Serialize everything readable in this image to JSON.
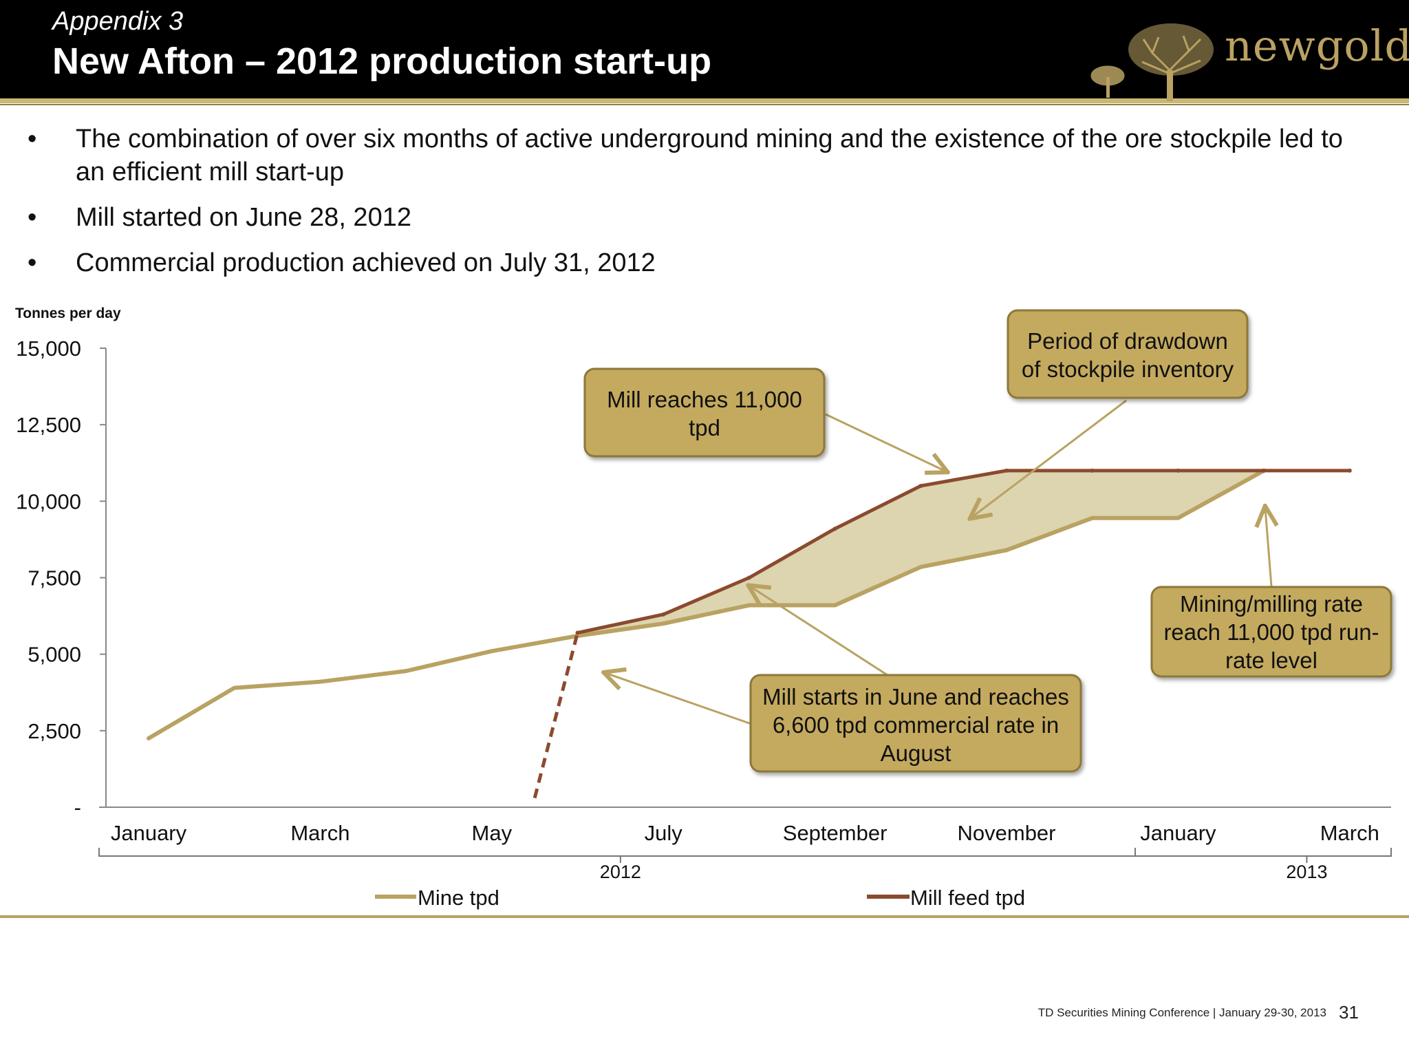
{
  "header": {
    "appendix": "Appendix 3",
    "title": "New Afton – 2012 production start-up",
    "logo_text": "newgold"
  },
  "bullets": [
    "The combination of over six months of active underground mining and the existence of the ore stockpile led to an efficient mill start-up",
    "Mill started on June 28, 2012",
    "Commercial production achieved on July 31, 2012"
  ],
  "chart_data": {
    "type": "line",
    "ylabel": "Tonnes per day",
    "ylim": [
      0,
      15000
    ],
    "ytick_labels": [
      "-",
      "2,500",
      "5,000",
      "7,500",
      "10,000",
      "12,500",
      "15,000"
    ],
    "ytick_values": [
      0,
      2500,
      5000,
      7500,
      10000,
      12500,
      15000
    ],
    "categories": [
      "Jan 2012",
      "Feb 2012",
      "Mar 2012",
      "Apr 2012",
      "May 2012",
      "Jun 2012",
      "Jul 2012",
      "Aug 2012",
      "Sep 2012",
      "Oct 2012",
      "Nov 2012",
      "Dec 2012",
      "Jan 2013",
      "Feb 2013",
      "Mar 2013"
    ],
    "xtick_labels": [
      "January",
      "March",
      "May",
      "July",
      "September",
      "November",
      "January",
      "March"
    ],
    "xtick_indices": [
      0,
      2,
      4,
      6,
      8,
      10,
      12,
      14
    ],
    "year_labels": [
      {
        "label": "2012",
        "index": 5.5
      },
      {
        "label": "2013",
        "index": 13.5
      }
    ],
    "series": [
      {
        "name": "Mine tpd",
        "color": "#b9a262",
        "x": [
          0,
          1,
          2,
          3,
          4,
          5,
          6,
          7,
          8,
          9,
          10,
          11,
          12,
          13
        ],
        "values": [
          2250,
          3900,
          4100,
          4450,
          5100,
          5600,
          6000,
          6600,
          6600,
          7850,
          8400,
          9450,
          9450,
          11000
        ]
      },
      {
        "name": "Mill feed tpd",
        "color": "#8b4a2e",
        "x": [
          5,
          6,
          7,
          8,
          9,
          10,
          11,
          12,
          13,
          14
        ],
        "values": [
          5700,
          6300,
          7500,
          9100,
          10500,
          11000,
          11000,
          11000,
          11000,
          11000
        ],
        "startup_dashed": {
          "x": [
            4.5,
            5
          ],
          "values": [
            300,
            5700
          ]
        }
      }
    ],
    "fill_color": "#ddd4b0",
    "annotations": [
      {
        "text": "Mill reaches 11,000 tpd"
      },
      {
        "text": "Period of drawdown of stockpile inventory"
      },
      {
        "text": "Mill starts in June and reaches 6,600 tpd commercial rate in August"
      },
      {
        "text": "Mining/milling rate reach 11,000 tpd run-rate level"
      }
    ]
  },
  "footer": {
    "conference": "TD Securities Mining Conference  |  January 29-30, 2013",
    "page": "31"
  }
}
